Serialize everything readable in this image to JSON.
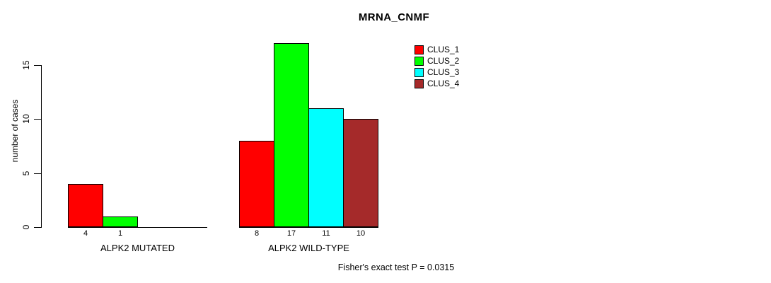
{
  "chart_data": {
    "type": "bar",
    "title": "MRNA_CNMF",
    "ylabel": "number of cases",
    "xlabel": "",
    "categories": [
      "ALPK2 MUTATED",
      "ALPK2 WILD-TYPE"
    ],
    "series": [
      {
        "name": "CLUS_1",
        "color": "#ff0000",
        "values": [
          4,
          8
        ]
      },
      {
        "name": "CLUS_2",
        "color": "#00ff00",
        "values": [
          1,
          17
        ]
      },
      {
        "name": "CLUS_3",
        "color": "#00ffff",
        "values": [
          0,
          11
        ]
      },
      {
        "name": "CLUS_4",
        "color": "#a52a2a",
        "values": [
          0,
          10
        ]
      }
    ],
    "yticks": [
      0,
      5,
      10,
      15
    ],
    "ylim": [
      0,
      17.5
    ],
    "grid": false,
    "bar_value_labels_shown": true,
    "legend_position": "top-right",
    "annotation": "Fisher's exact test P = 0.0315",
    "axis_color": "#000000",
    "background": "#ffffff"
  }
}
